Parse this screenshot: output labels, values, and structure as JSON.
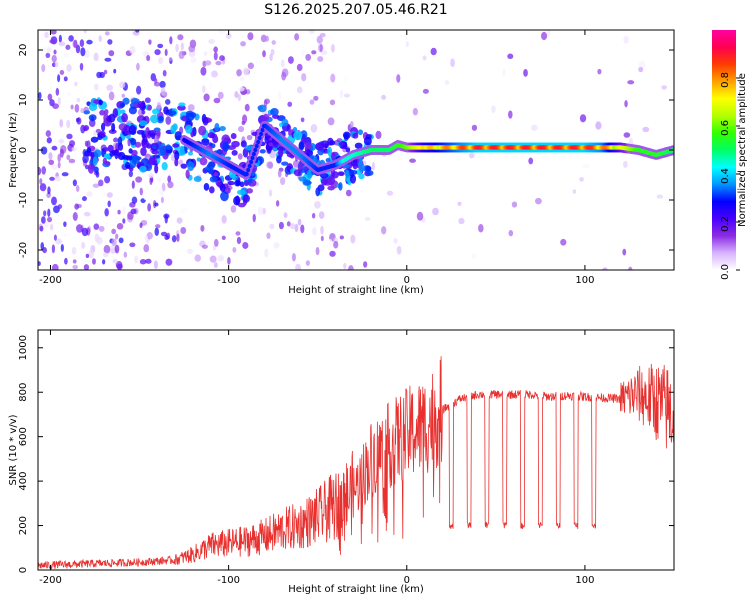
{
  "title": "S126.2025.207.05.46.R21",
  "chart_data": [
    {
      "type": "heatmap",
      "xlabel": "Height of straight line (km)",
      "ylabel": "Frequency (Hz)",
      "xlim": [
        -207,
        150
      ],
      "ylim": [
        -24,
        24
      ],
      "xticks": [
        -200,
        -100,
        0,
        100
      ],
      "yticks": [
        -20,
        -10,
        0,
        10,
        20
      ],
      "colorbar": {
        "label": "Normalized spectral amplitude",
        "range": [
          0,
          1
        ],
        "ticks": [
          "0.0",
          "0.2",
          "0.4",
          "0.6",
          "0.8"
        ],
        "colors": [
          "#ffffff",
          "#d6b3ff",
          "#8a2be2",
          "#4b00ff",
          "#0000ff",
          "#0096ff",
          "#00ffff",
          "#00ff64",
          "#32ff00",
          "#b4ff00",
          "#ffff00",
          "#ffa000",
          "#ff3c00",
          "#ff0050",
          "#ff00a0"
        ]
      },
      "ridge": {
        "x": [
          -130,
          -120,
          -110,
          -100,
          -90,
          -80,
          -70,
          -60,
          -50,
          -40,
          -35,
          -30,
          -20,
          -10,
          -5,
          0,
          10,
          20,
          40,
          60,
          80,
          100,
          110,
          120,
          130,
          140,
          150
        ],
        "y": [
          3,
          1,
          -1,
          -3,
          -5,
          5,
          2,
          -1,
          -4,
          -3,
          -2,
          -1,
          0,
          0,
          1,
          0.5,
          0.5,
          0.5,
          0.5,
          0.5,
          0.5,
          0.5,
          0.5,
          0.5,
          0,
          -1,
          0
        ],
        "amplitude": [
          0.25,
          0.3,
          0.35,
          0.3,
          0.3,
          0.3,
          0.35,
          0.35,
          0.3,
          0.3,
          0.45,
          0.45,
          0.5,
          0.5,
          0.55,
          0.6,
          0.75,
          0.8,
          0.9,
          0.9,
          0.9,
          0.9,
          0.85,
          0.7,
          0.55,
          0.55,
          0.5
        ]
      }
    },
    {
      "type": "line",
      "xlabel": "Height of straight line (km)",
      "ylabel": "SNR (10 * v/v)",
      "xlim": [
        -207,
        150
      ],
      "ylim": [
        0,
        1080
      ],
      "xticks": [
        -200,
        -100,
        0,
        100
      ],
      "yticks": [
        0,
        200,
        400,
        600,
        800,
        1000
      ],
      "color": "#e8312f",
      "series": [
        {
          "x": [
            -207,
            -190,
            -170,
            -150,
            -130,
            -120,
            -110,
            -100,
            -90,
            -80,
            -70,
            -60,
            -50,
            -40,
            -30,
            -25,
            -20,
            -10,
            0,
            10,
            20,
            30,
            40,
            50,
            60,
            70,
            80,
            90,
            100,
            110,
            120,
            130,
            140,
            150
          ],
          "y": [
            20,
            25,
            30,
            35,
            45,
            70,
            110,
            120,
            130,
            150,
            180,
            200,
            240,
            290,
            350,
            420,
            500,
            560,
            610,
            650,
            720,
            770,
            790,
            790,
            790,
            790,
            780,
            785,
            780,
            775,
            770,
            790,
            760,
            700
          ],
          "dropouts": [
            {
              "x": 25,
              "y": 200
            },
            {
              "x": 35,
              "y": 200
            },
            {
              "x": 45,
              "y": 200
            },
            {
              "x": 55,
              "y": 200
            },
            {
              "x": 65,
              "y": 200
            },
            {
              "x": 75,
              "y": 200
            },
            {
              "x": 85,
              "y": 200
            },
            {
              "x": 95,
              "y": 200
            },
            {
              "x": 105,
              "y": 200
            }
          ]
        }
      ]
    }
  ]
}
